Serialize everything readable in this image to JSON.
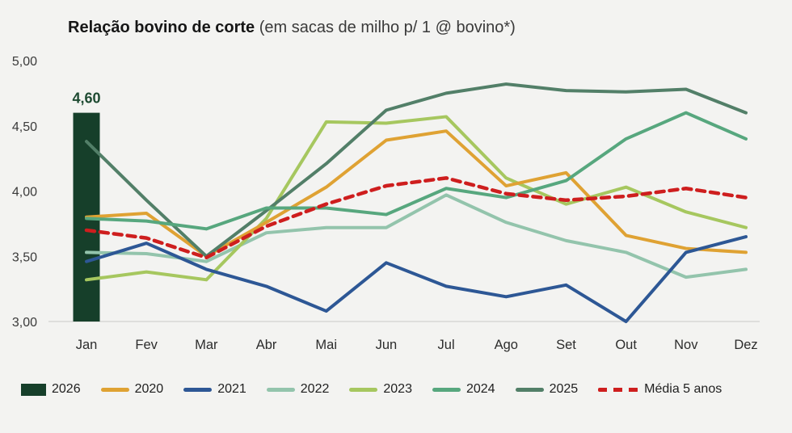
{
  "chart": {
    "title": "Relação bovino de corte",
    "subtitle": " (em sacas de milho p/ 1 @ bovino*)"
  },
  "chart_data": {
    "type": "line",
    "title": "Relação bovino de corte",
    "subtitle": "(em sacas de milho p/ 1 @ bovino*)",
    "categories": [
      "Jan",
      "Fev",
      "Mar",
      "Abr",
      "Mai",
      "Jun",
      "Jul",
      "Ago",
      "Set",
      "Out",
      "Nov",
      "Dez"
    ],
    "ylim": [
      3.0,
      5.0
    ],
    "grid": false,
    "legend_position": "bottom",
    "y_ticks": [
      {
        "label": "5,00",
        "value": 5.0
      },
      {
        "label": "4,50",
        "value": 4.5
      },
      {
        "label": "4,00",
        "value": 4.0
      },
      {
        "label": "3,50",
        "value": 3.5
      },
      {
        "label": "3,00",
        "value": 3.0
      }
    ],
    "bar": {
      "name": "2026",
      "month": "Jan",
      "month_index": 0,
      "value": 4.6,
      "value_label": "4,60",
      "color": "#163f2a",
      "label_color": "#1d4a31"
    },
    "series": [
      {
        "name": "2022",
        "color": "#93c4ac",
        "dashed": false,
        "values": [
          3.53,
          3.52,
          3.46,
          3.68,
          3.72,
          3.72,
          3.97,
          3.76,
          3.62,
          3.53,
          3.34,
          3.4
        ]
      },
      {
        "name": "2023",
        "color": "#a6c75f",
        "dashed": false,
        "values": [
          3.32,
          3.38,
          3.32,
          3.79,
          4.53,
          4.52,
          4.57,
          4.1,
          3.9,
          4.03,
          3.84,
          3.72
        ]
      },
      {
        "name": "2020",
        "color": "#dfa233",
        "dashed": false,
        "values": [
          3.8,
          3.83,
          3.5,
          3.76,
          4.03,
          4.39,
          4.46,
          4.04,
          4.14,
          3.66,
          3.56,
          3.53
        ]
      },
      {
        "name": "2025",
        "color": "#527f68",
        "dashed": false,
        "values": [
          4.38,
          3.93,
          3.5,
          3.85,
          4.21,
          4.62,
          4.75,
          4.82,
          4.77,
          4.76,
          4.78,
          4.6
        ]
      },
      {
        "name": "2024",
        "color": "#57a77e",
        "dashed": false,
        "values": [
          3.79,
          3.77,
          3.71,
          3.87,
          3.87,
          3.82,
          4.02,
          3.95,
          4.08,
          4.4,
          4.6,
          4.4
        ]
      },
      {
        "name": "2021",
        "color": "#2d5795",
        "dashed": false,
        "values": [
          3.46,
          3.6,
          3.4,
          3.27,
          3.08,
          3.45,
          3.27,
          3.19,
          3.28,
          3.0,
          3.53,
          3.65
        ]
      },
      {
        "name": "Média 5 anos",
        "color": "#ce1e1e",
        "dashed": true,
        "values": [
          3.7,
          3.64,
          3.49,
          3.73,
          3.9,
          4.04,
          4.1,
          3.98,
          3.93,
          3.96,
          4.02,
          3.95
        ]
      }
    ],
    "legend": [
      {
        "label": "2026",
        "color": "#163f2a",
        "swatch": "bar"
      },
      {
        "label": "2020",
        "color": "#dfa233",
        "swatch": "line"
      },
      {
        "label": "2021",
        "color": "#2d5795",
        "swatch": "line"
      },
      {
        "label": "2022",
        "color": "#93c4ac",
        "swatch": "line"
      },
      {
        "label": "2023",
        "color": "#a6c75f",
        "swatch": "line"
      },
      {
        "label": "2024",
        "color": "#57a77e",
        "swatch": "line"
      },
      {
        "label": "2025",
        "color": "#527f68",
        "swatch": "line"
      },
      {
        "label": "Média 5 anos",
        "color": "#ce1e1e",
        "swatch": "dashed"
      }
    ]
  }
}
